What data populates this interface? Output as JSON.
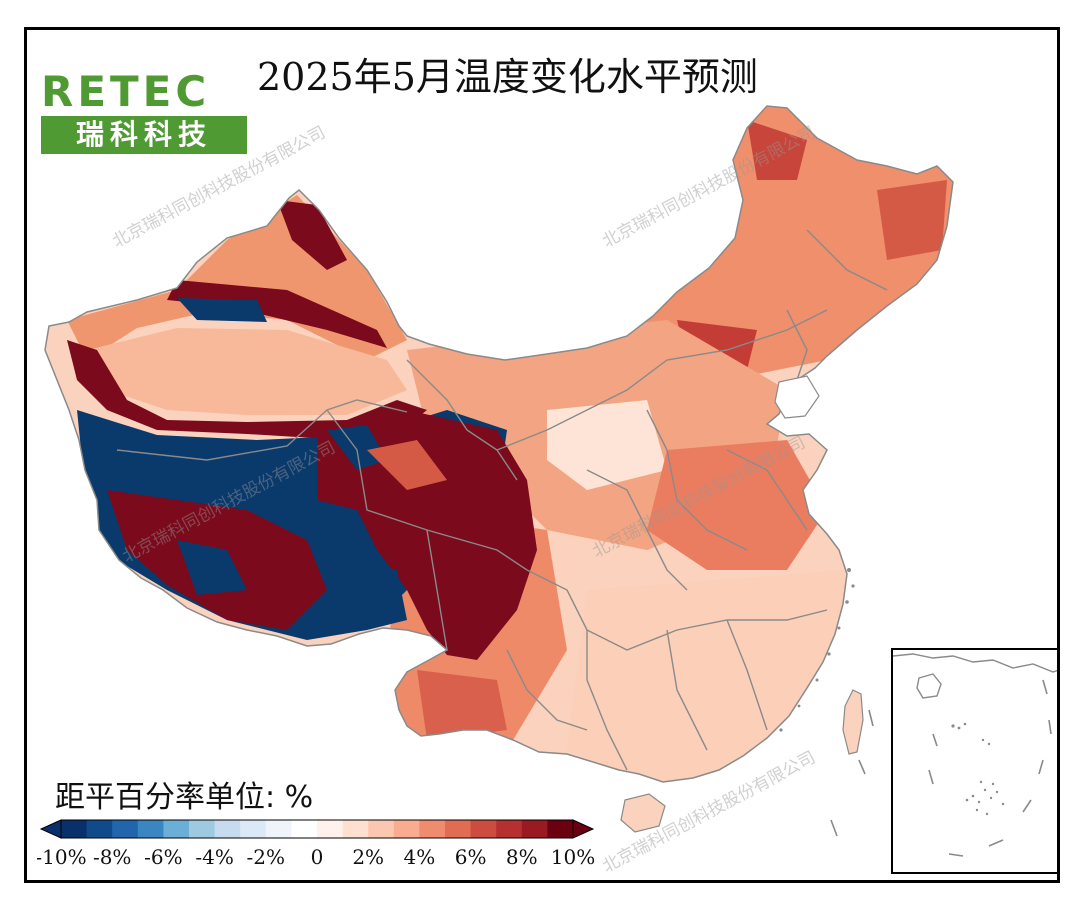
{
  "title": "2025年5月温度变化水平预测",
  "logo": {
    "latin": "RETEC",
    "chinese": "瑞科科技"
  },
  "unit_label": "距平百分率单位: %",
  "watermark": "北京瑞科同创科技股份有限公司",
  "legend": {
    "ticks": [
      "-10%",
      "-8%",
      "-6%",
      "-4%",
      "-2%",
      "0",
      "2%",
      "4%",
      "6%",
      "8%",
      "10%"
    ],
    "colors": [
      "#08306b",
      "#0f4a8a",
      "#2166ac",
      "#3a86c2",
      "#6baed6",
      "#9ecae1",
      "#c6dbef",
      "#dbe9f6",
      "#eef4fa",
      "#ffffff",
      "#fff2ec",
      "#fde0d0",
      "#fcc7b0",
      "#f9ac90",
      "#f08c6e",
      "#e06c52",
      "#cc4c3e",
      "#b5302f",
      "#9a1a22",
      "#6b0010"
    ]
  },
  "palette": {
    "deep_red": "#7a0a1c",
    "dark_red": "#b5302f",
    "red": "#e06c52",
    "orange": "#f0966e",
    "light_orange": "#f7b99a",
    "pale": "#fbd7c4",
    "very_pale": "#fde9dd",
    "dark_blue": "#0a3a6c",
    "border": "#8a8a8a"
  }
}
